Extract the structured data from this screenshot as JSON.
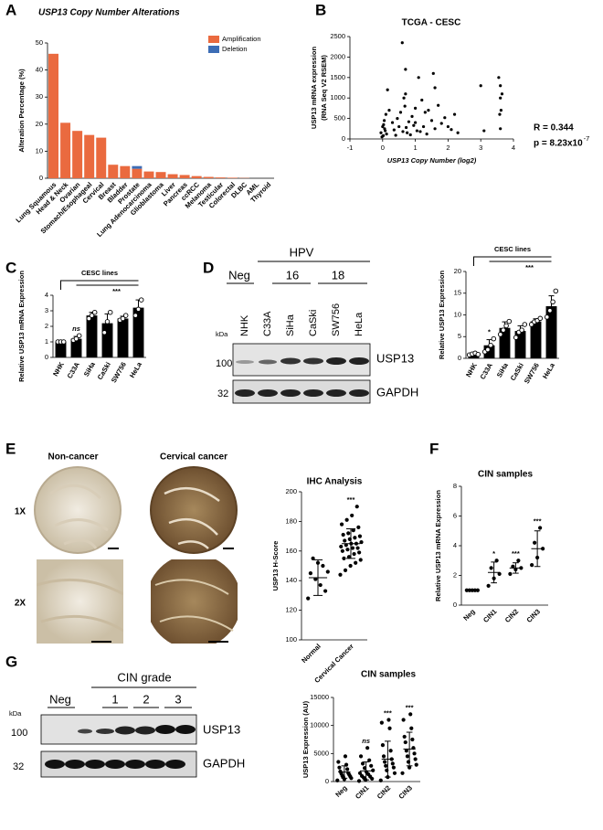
{
  "panels": {
    "a": "A",
    "b": "B",
    "c": "C",
    "d": "D",
    "e": "E",
    "f": "F",
    "g": "G"
  },
  "blot_d": {
    "group_neg": "Neg",
    "group_hpv": "HPV",
    "hpv_types": [
      "16",
      "18"
    ],
    "lanes": [
      "NHK",
      "C33A",
      "SiHa",
      "CaSki",
      "SW756",
      "HeLa"
    ],
    "kda": "kDa",
    "markers": [
      "100",
      "32"
    ],
    "proteins": [
      "USP13",
      "GAPDH"
    ]
  },
  "ihc_e": {
    "columns": [
      "Non-cancer",
      "Cervical cancer"
    ],
    "rows": [
      "1X",
      "2X"
    ]
  },
  "blot_g": {
    "group": "CIN grade",
    "lanes": [
      "Neg",
      "1",
      "2",
      "3"
    ],
    "kda": "kDa",
    "markers": [
      "100",
      "32"
    ],
    "proteins": [
      "USP13",
      "GAPDH"
    ]
  },
  "chart_data": [
    {
      "type": "bar",
      "stacked": true,
      "title": "USP13 Copy Number Alterations",
      "ylabel": "Alteration Percentage (%)",
      "categories": [
        "Lung Squamous",
        "Head & Neck",
        "Ovarian",
        "Stomach/Esophageal",
        "Cervical",
        "Breast",
        "Bladder",
        "Prostate",
        "Lung Adenocarcinoma",
        "Glioblastoma",
        "Liver",
        "Pancreas",
        "ccRCC",
        "Melanoma",
        "Testicular",
        "Colorectal",
        "DLBC",
        "AML",
        "Thyroid"
      ],
      "series": [
        {
          "name": "Amplification",
          "color": "#ea6a3f",
          "values": [
            46,
            20.5,
            17.5,
            16,
            15,
            5,
            4.5,
            3.5,
            2.5,
            2.3,
            1.5,
            1.2,
            0.8,
            0.5,
            0.3,
            0.2,
            0.1,
            0,
            0
          ]
        },
        {
          "name": "Deletion",
          "color": "#3d6db5",
          "values": [
            0,
            0,
            0,
            0,
            0,
            0,
            0,
            1,
            0,
            0,
            0,
            0,
            0,
            0,
            0,
            0,
            0,
            0,
            0
          ]
        }
      ],
      "ylim": [
        0,
        50
      ],
      "yticks": [
        0,
        10,
        20,
        30,
        40,
        50
      ],
      "legend": "upper right"
    },
    {
      "type": "scatter",
      "title": "TCGA - CESC",
      "xlabel": "USP13 Copy Number (log2)",
      "ylabel": [
        "USP13 mRNA expression",
        "(RNA Seq V2 RSEM)"
      ],
      "color": "#000000",
      "x": [
        -0.05,
        0,
        0.02,
        0.05,
        0.08,
        0.1,
        -0.02,
        0.03,
        0.06,
        0.12,
        0.3,
        0.35,
        0.4,
        0.45,
        0.5,
        0.55,
        0.6,
        0.62,
        0.65,
        0.7,
        0.72,
        0.75,
        0.8,
        0.85,
        0.9,
        0.95,
        1.0,
        1.05,
        1.1,
        1.15,
        1.2,
        1.25,
        1.3,
        1.35,
        1.4,
        1.5,
        1.55,
        1.6,
        1.7,
        1.8,
        1.9,
        2.0,
        2.1,
        2.2,
        2.3,
        0.68,
        0.7,
        1.0,
        1.6,
        0.2,
        3.0,
        3.1,
        3.55,
        3.6,
        3.65,
        3.6,
        3.62,
        3.58,
        3.6,
        0.15
      ],
      "values": [
        150,
        300,
        80,
        450,
        200,
        600,
        50,
        350,
        250,
        120,
        400,
        220,
        90,
        500,
        300,
        650,
        2350,
        180,
        1000,
        1700,
        280,
        150,
        420,
        100,
        550,
        330,
        750,
        200,
        1500,
        180,
        950,
        300,
        650,
        120,
        700,
        450,
        1600,
        250,
        820,
        380,
        520,
        300,
        230,
        600,
        150,
        800,
        1100,
        400,
        1250,
        700,
        1300,
        200,
        1500,
        1300,
        1100,
        1000,
        700,
        600,
        250,
        1200
      ],
      "xlim": [
        -1,
        4
      ],
      "xticks": [
        -1,
        0,
        1,
        2,
        3,
        4
      ],
      "ylim": [
        0,
        2500
      ],
      "yticks": [
        0,
        500,
        1000,
        1500,
        2000,
        2500
      ],
      "stats": {
        "r": "R = 0.344",
        "p": "p = 8.23x10",
        "p_exponent": "-7"
      }
    },
    {
      "type": "bar",
      "ylabel": "Relative USP13 mRNA Expression",
      "color": "#000000",
      "categories": [
        "NHK",
        "C33A",
        "SiHa",
        "CaSki",
        "SW756",
        "HeLa"
      ],
      "values": [
        1,
        1.2,
        2.7,
        2.2,
        2.5,
        3.2
      ],
      "errors": [
        0.02,
        0.15,
        0.2,
        0.6,
        0.15,
        0.5
      ],
      "points": [
        [
          1,
          1,
          1
        ],
        [
          1.1,
          1.2,
          1.4
        ],
        [
          2.5,
          2.7,
          2.9
        ],
        [
          1.6,
          2.3,
          2.9
        ],
        [
          2.4,
          2.5,
          2.7
        ],
        [
          2.7,
          3.1,
          3.7
        ]
      ],
      "significance": [
        null,
        "ns",
        null,
        null,
        null,
        null
      ],
      "group_label": "CESC lines",
      "group_significance": "***",
      "ylim": [
        0,
        4
      ],
      "yticks": [
        0,
        1,
        2,
        3,
        4
      ]
    },
    {
      "type": "bar",
      "ylabel": "Relative USP13 Expression",
      "color": "#000000",
      "categories": [
        "NHK",
        "C33A",
        "SiHa",
        "CaSki",
        "SW756",
        "HeLa"
      ],
      "values": [
        1,
        3,
        7,
        6.3,
        8.5,
        12
      ],
      "errors": [
        0.2,
        1.3,
        1.4,
        1.2,
        0.6,
        2.4
      ],
      "points": [
        [
          0.8,
          1,
          1.2,
          0.9
        ],
        [
          1.5,
          2,
          3,
          4.5
        ],
        [
          5.5,
          6.5,
          7.5,
          8.5
        ],
        [
          4.8,
          6,
          6.5,
          7.8
        ],
        [
          7.8,
          8.4,
          8.7,
          9.2
        ],
        [
          9.5,
          11,
          13,
          15.5
        ]
      ],
      "significance": [
        null,
        "*",
        null,
        null,
        null,
        null
      ],
      "group_label": "CESC lines",
      "group_significance": "***",
      "ylim": [
        0,
        20
      ],
      "yticks": [
        0,
        5,
        10,
        15,
        20
      ]
    },
    {
      "type": "dot",
      "title": "IHC Analysis",
      "ylabel": "USP13 H-Score",
      "color": "#000000",
      "categories": [
        "Normal",
        "Cervical Cancer"
      ],
      "values": [
        142,
        165
      ],
      "errors": [
        12,
        10
      ],
      "points": [
        [
          128,
          133,
          137,
          141,
          145,
          146,
          150,
          152,
          155
        ],
        [
          144,
          147,
          150,
          152,
          154,
          155,
          156,
          158,
          159,
          160,
          161,
          162,
          162,
          163,
          164,
          165,
          165,
          166,
          167,
          168,
          169,
          170,
          171,
          172,
          174,
          176,
          178,
          181,
          184,
          190
        ]
      ],
      "significance": [
        null,
        "***"
      ],
      "ylim": [
        100,
        200
      ],
      "yticks": [
        100,
        120,
        140,
        160,
        180,
        200
      ]
    },
    {
      "type": "dot",
      "title": "CIN samples",
      "ylabel": "Relative USP13 mRNA Expression",
      "color": "#000000",
      "categories": [
        "Neg",
        "CIN1",
        "CIN2",
        "CIN3"
      ],
      "values": [
        1,
        2.2,
        2.5,
        3.8
      ],
      "errors": [
        0,
        0.7,
        0.35,
        1.2
      ],
      "points": [
        [
          1,
          1,
          1,
          1,
          1
        ],
        [
          1.3,
          1.8,
          2.1,
          2.5,
          3.0
        ],
        [
          2.1,
          2.4,
          2.5,
          2.6,
          3.0
        ],
        [
          2.7,
          3.2,
          3.8,
          4.2,
          5.2
        ]
      ],
      "significance": [
        null,
        "*",
        "***",
        "***"
      ],
      "ylim": [
        0,
        8
      ],
      "yticks": [
        0,
        2,
        4,
        6,
        8
      ]
    },
    {
      "type": "dot",
      "title": "CIN samples",
      "ylabel": "USP13 Expression (AU)",
      "color": "#000000",
      "categories": [
        "Neg",
        "CIN1",
        "CIN2",
        "CIN3"
      ],
      "values": [
        1700,
        1900,
        4000,
        5800
      ],
      "errors": [
        1100,
        1600,
        3200,
        3000
      ],
      "points": [
        [
          200,
          400,
          600,
          800,
          900,
          1000,
          1200,
          1400,
          1500,
          1800,
          2200,
          2500,
          3000,
          3500,
          4500
        ],
        [
          100,
          300,
          500,
          700,
          900,
          1000,
          1300,
          1500,
          1700,
          2000,
          2400,
          2800,
          3200,
          3800,
          4500,
          6000
        ],
        [
          200,
          800,
          1500,
          2000,
          2500,
          2800,
          3200,
          3500,
          4000,
          4500,
          5500,
          6500,
          9500,
          10500,
          11000
        ],
        [
          1500,
          2500,
          3000,
          3500,
          4000,
          4500,
          5000,
          5500,
          6000,
          7000,
          7500,
          8000,
          9500,
          11000,
          12000
        ]
      ],
      "significance": [
        null,
        "ns",
        "***",
        "***"
      ],
      "ylim": [
        0,
        15000
      ],
      "yticks": [
        0,
        5000,
        10000,
        15000
      ]
    }
  ]
}
